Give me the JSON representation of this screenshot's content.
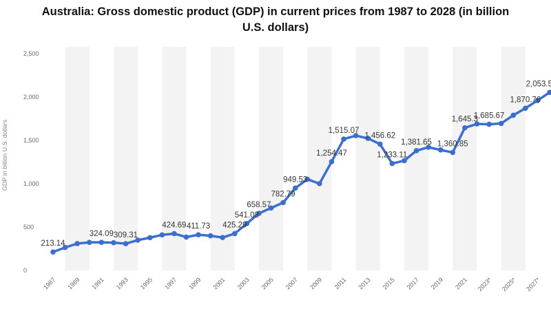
{
  "chart_data": {
    "type": "line",
    "title_line1": "Australia: Gross domestic product (GDP) in current prices from 1987 to 2028 (in billion",
    "title_line2": "U.S. dollars)",
    "ylabel": "GDP in billion U.S. dollars",
    "ylim": [
      0,
      2500
    ],
    "xlim": [
      1987,
      2028
    ],
    "yticks": [
      0,
      500,
      1000,
      1500,
      2000,
      2500
    ],
    "ytick_labels": [
      "0",
      "500",
      "1,000",
      "1,500",
      "2,000",
      "2,500"
    ],
    "xtick_labels": [
      "1987",
      "1989",
      "1991",
      "1993",
      "1995",
      "1997",
      "1999",
      "2001",
      "2003",
      "2005",
      "2007",
      "2009",
      "2011",
      "2013",
      "2015",
      "2017",
      "2019",
      "2021",
      "2023*",
      "2025*",
      "2027*"
    ],
    "grid": "vertical-bands",
    "color": "#3a6fd1",
    "x": [
      1987,
      1988,
      1989,
      1990,
      1991,
      1992,
      1993,
      1994,
      1995,
      1996,
      1997,
      1998,
      1999,
      2000,
      2001,
      2002,
      2003,
      2004,
      2005,
      2006,
      2007,
      2008,
      2009,
      2010,
      2011,
      2012,
      2013,
      2014,
      2015,
      2016,
      2017,
      2018,
      2019,
      2020,
      2021,
      2022,
      2023,
      2024,
      2025,
      2026,
      2027,
      2028
    ],
    "values": [
      213.14,
      265,
      310,
      324,
      324.09,
      320,
      309.31,
      350,
      378,
      410,
      424.69,
      385,
      411.73,
      400,
      380,
      425.29,
      541.08,
      658.57,
      720,
      782.79,
      949.53,
      1052,
      1001,
      1254.47,
      1515.07,
      1555,
      1523,
      1456.62,
      1233.11,
      1266,
      1381.65,
      1421,
      1390,
      1360.85,
      1645.3,
      1690,
      1685.67,
      1695,
      1790,
      1870.76,
      1960,
      2053.5
    ],
    "data_labels": [
      {
        "x": 1987,
        "text": "213.14"
      },
      {
        "x": 1991,
        "text": "324.09"
      },
      {
        "x": 1993,
        "text": "309.31"
      },
      {
        "x": 1997,
        "text": "424.69"
      },
      {
        "x": 1999,
        "text": "411.73"
      },
      {
        "x": 2002,
        "text": "425.29"
      },
      {
        "x": 2003,
        "text": "541.08"
      },
      {
        "x": 2004,
        "text": "658.57"
      },
      {
        "x": 2006,
        "text": "782.79"
      },
      {
        "x": 2007,
        "text": "949.53"
      },
      {
        "x": 2010,
        "text": "1,254.47"
      },
      {
        "x": 2011,
        "text": "1,515.07"
      },
      {
        "x": 2014,
        "text": "1,456.62"
      },
      {
        "x": 2015,
        "text": "1,233.11"
      },
      {
        "x": 2017,
        "text": "1,381.65"
      },
      {
        "x": 2020,
        "text": "1,360.85"
      },
      {
        "x": 2021,
        "text": "1,645.3"
      },
      {
        "x": 2023,
        "text": "1,685.67"
      },
      {
        "x": 2026,
        "text": "1,870.76"
      },
      {
        "x": 2028,
        "text": "2,053.5"
      }
    ]
  }
}
